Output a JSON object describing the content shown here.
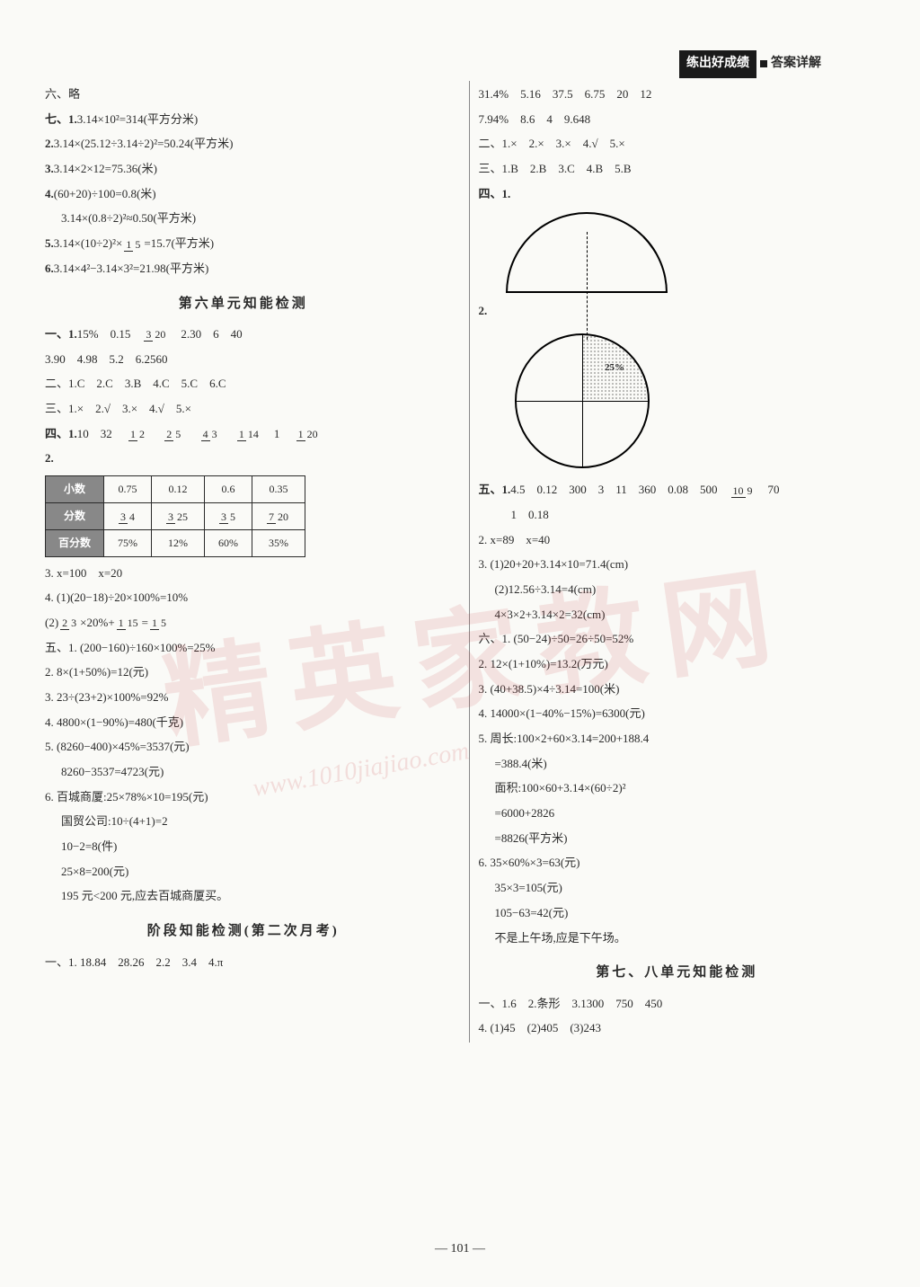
{
  "header": {
    "badge_dark": "练出好成绩",
    "badge_text": "答案详解"
  },
  "left": {
    "l1": "六、略",
    "l2a": "七、1.",
    "l2b": "3.14×10²=314(平方分米)",
    "l3a": "2.",
    "l3b": "3.14×(25.12÷3.14÷2)²=50.24(平方米)",
    "l4a": "3.",
    "l4b": "3.14×2×12=75.36(米)",
    "l5a": "4.",
    "l5b": "(60+20)÷100=0.8(米)",
    "l6": "3.14×(0.8÷2)²≈0.50(平方米)",
    "l7a": "5.",
    "l7b_pre": "3.14×(10÷2)²×",
    "l7b_post": "=15.7(平方米)",
    "l8a": "6.",
    "l8b": "3.14×4²−3.14×3²=21.98(平方米)",
    "section1": "第六单元知能检测",
    "s1_1a": "一、1.",
    "s1_1b": "15%　0.15　",
    "s1_1c": "　2.30　6　40",
    "s1_2": "3.90　4.98　5.2　6.2560",
    "s1_3": "二、1.C　2.C　3.B　4.C　5.C　6.C",
    "s1_4": "三、1.×　2.√　3.×　4.√　5.×",
    "s1_5a": "四、1.",
    "s1_5b": "10　32　",
    "tbl_h1": "小数",
    "tbl_h2": "分数",
    "tbl_h3": "百分数",
    "tbl_c1": "0.75",
    "tbl_c2": "0.12",
    "tbl_c3": "0.6",
    "tbl_c4": "0.35",
    "tbl_p1": "75%",
    "tbl_p2": "12%",
    "tbl_p3": "60%",
    "tbl_p4": "35%",
    "s1_6": "3. x=100　x=20",
    "s1_7": "4. (1)(20−18)÷20×100%=10%",
    "s1_8a": "(2)",
    "s1_8mid": "×20%+",
    "s1_8eq": "=",
    "s1_9": "五、1. (200−160)÷160×100%=25%",
    "s1_10": "2. 8×(1+50%)=12(元)",
    "s1_11": "3. 23÷(23+2)×100%=92%",
    "s1_12": "4. 4800×(1−90%)=480(千克)",
    "s1_13": "5. (8260−400)×45%=3537(元)",
    "s1_14": "8260−3537=4723(元)",
    "s1_15": "6. 百城商厦:25×78%×10=195(元)",
    "s1_16": "国贸公司:10÷(4+1)=2",
    "s1_17": "10−2=8(件)",
    "s1_18": "25×8=200(元)",
    "s1_19": "195 元<200 元,应去百城商厦买。",
    "section2": "阶段知能检测(第二次月考)",
    "s2_1": "一、1. 18.84　28.26　2.2　3.4　4.π"
  },
  "right": {
    "l1": "31.4%　5.16　37.5　6.75　20　12",
    "l2": "7.94%　8.6　4　9.648",
    "l3": "二、1.×　2.×　3.×　4.√　5.×",
    "l4": "三、1.B　2.B　3.C　4.B　5.B",
    "l5": "四、1.",
    "l6": "2.",
    "pie_label": "25%",
    "l7a": "五、1.",
    "l7b": "4.5　0.12　300　3　11　360　0.08　500　",
    "l7c": "　70",
    "l8": "1　0.18",
    "l9": "2. x=89　x=40",
    "l10": "3. (1)20+20+3.14×10=71.4(cm)",
    "l11": "(2)12.56÷3.14=4(cm)",
    "l12": "4×3×2+3.14×2=32(cm)",
    "l13": "六、1. (50−24)÷50=26÷50=52%",
    "l14": "2. 12×(1+10%)=13.2(万元)",
    "l15": "3. (40+38.5)×4÷3.14=100(米)",
    "l16": "4. 14000×(1−40%−15%)=6300(元)",
    "l17": "5. 周长:100×2+60×3.14=200+188.4",
    "l18": "=388.4(米)",
    "l19": "面积:100×60+3.14×(60÷2)²",
    "l20": "=6000+2826",
    "l21": "=8826(平方米)",
    "l22": "6. 35×60%×3=63(元)",
    "l23": "35×3=105(元)",
    "l24": "105−63=42(元)",
    "l25": "不是上午场,应是下午场。",
    "section3": "第七、八单元知能检测",
    "s3_1": "一、1.6　2.条形　3.1300　750　450",
    "s3_2": "4. (1)45　(2)405　(3)243"
  },
  "fracs": {
    "f15": {
      "n": "1",
      "d": "5"
    },
    "f320": {
      "n": "3",
      "d": "20"
    },
    "f12": {
      "n": "1",
      "d": "2"
    },
    "f25": {
      "n": "2",
      "d": "5"
    },
    "f43": {
      "n": "4",
      "d": "3"
    },
    "f114": {
      "n": "1",
      "d": "14"
    },
    "f1": {
      "n": "1",
      "d": "1"
    },
    "f120": {
      "n": "1",
      "d": "20"
    },
    "t34": {
      "n": "3",
      "d": "4"
    },
    "t325": {
      "n": "3",
      "d": "25"
    },
    "t35": {
      "n": "3",
      "d": "5"
    },
    "t720": {
      "n": "7",
      "d": "20"
    },
    "f23": {
      "n": "2",
      "d": "3"
    },
    "f115": {
      "n": "1",
      "d": "15"
    },
    "f15b": {
      "n": "1",
      "d": "5"
    },
    "f109": {
      "n": "10",
      "d": "9"
    }
  },
  "page_num": "— 101 —",
  "watermark": "精英家教网",
  "watermark_url": "www.1010jiajiao.com"
}
